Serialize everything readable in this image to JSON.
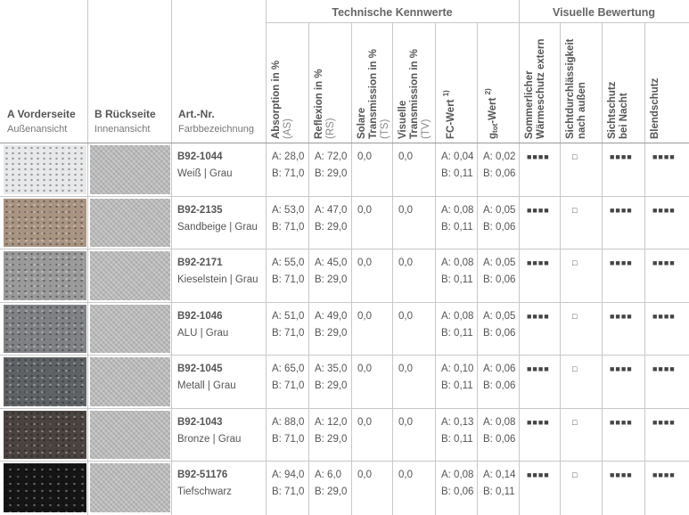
{
  "header": {
    "groups": [
      "Technische Kennwerte",
      "Visuelle Bewertung"
    ],
    "left": [
      {
        "title": "A Vorderseite",
        "subtitle": "Außenansicht"
      },
      {
        "title": "B Rückseite",
        "subtitle": "Innenansicht"
      },
      {
        "title": "Art.-Nr.",
        "subtitle": "Farbbezeichnung"
      }
    ],
    "columns": [
      [
        [
          {
            "text": "Absorption in %"
          }
        ],
        [
          {
            "text": "(AS)",
            "style": "light"
          }
        ]
      ],
      [
        [
          {
            "text": "Reflexion in %"
          }
        ],
        [
          {
            "text": "(RS)",
            "style": "light"
          }
        ]
      ],
      [
        [
          {
            "text": "Solare"
          }
        ],
        [
          {
            "text": "Transmission in %"
          }
        ],
        [
          {
            "text": "(TS)",
            "style": "light"
          }
        ]
      ],
      [
        [
          {
            "text": "Visuelle"
          }
        ],
        [
          {
            "text": "Transmission in %"
          }
        ],
        [
          {
            "text": "(TV)",
            "style": "light"
          }
        ]
      ],
      [
        [
          {
            "text": "FC-Wert "
          },
          {
            "text": "1)",
            "style": "sup"
          }
        ]
      ],
      [
        [
          {
            "text": "g"
          },
          {
            "text": "tot",
            "style": "sub"
          },
          {
            "text": "-Wert "
          },
          {
            "text": "2)",
            "style": "sup"
          }
        ]
      ],
      [
        [
          {
            "text": "Sommerlicher"
          }
        ],
        [
          {
            "text": "Wärmeschutz extern"
          }
        ]
      ],
      [
        [
          {
            "text": "Sichtdurchlässigkeit"
          }
        ],
        [
          {
            "text": "nach außen"
          }
        ]
      ],
      [
        [
          {
            "text": "Sichtschutz"
          }
        ],
        [
          {
            "text": "bei Nacht"
          }
        ]
      ],
      [
        [
          {
            "text": "Blendschutz"
          }
        ]
      ]
    ]
  },
  "rows": [
    {
      "code": "B92-1044",
      "name": "Weiß | Grau",
      "absorption": [
        "A: 28,0",
        "B: 71,0"
      ],
      "reflexion": [
        "A: 72,0",
        "B: 29,0"
      ],
      "solar": "0,0",
      "visual": "0,0",
      "fc": [
        "A: 0,04",
        "B: 0,11"
      ],
      "g": [
        "A: 0,02",
        "B: 0,06"
      ],
      "ratings": [
        "■■■■",
        "□",
        "■■■■",
        "■■■■"
      ]
    },
    {
      "code": "B92-2135",
      "name": "Sandbeige | Grau",
      "absorption": [
        "A: 53,0",
        "B: 71,0"
      ],
      "reflexion": [
        "A: 47,0",
        "B: 29,0"
      ],
      "solar": "0,0",
      "visual": "0,0",
      "fc": [
        "A: 0,08",
        "B: 0,11"
      ],
      "g": [
        "A: 0,05",
        "B: 0,06"
      ],
      "ratings": [
        "■■■■",
        "□",
        "■■■■",
        "■■■■"
      ]
    },
    {
      "code": "B92-2171",
      "name": "Kieselstein | Grau",
      "absorption": [
        "A: 55,0",
        "B: 71,0"
      ],
      "reflexion": [
        "A: 45,0",
        "B: 29,0"
      ],
      "solar": "0,0",
      "visual": "0,0",
      "fc": [
        "A: 0,08",
        "B: 0,11"
      ],
      "g": [
        "A: 0,05",
        "B: 0,06"
      ],
      "ratings": [
        "■■■■",
        "□",
        "■■■■",
        "■■■■"
      ]
    },
    {
      "code": "B92-1046",
      "name": "ALU | Grau",
      "absorption": [
        "A: 51,0",
        "B: 71,0"
      ],
      "reflexion": [
        "A: 49,0",
        "B: 29,0"
      ],
      "solar": "0,0",
      "visual": "0,0",
      "fc": [
        "A: 0,08",
        "B: 0,11"
      ],
      "g": [
        "A: 0,05",
        "B: 0,06"
      ],
      "ratings": [
        "■■■■",
        "□",
        "■■■■",
        "■■■■"
      ]
    },
    {
      "code": "B92-1045",
      "name": "Metall | Grau",
      "absorption": [
        "A: 65,0",
        "B: 71,0"
      ],
      "reflexion": [
        "A: 35,0",
        "B: 29,0"
      ],
      "solar": "0,0",
      "visual": "0,0",
      "fc": [
        "A: 0,10",
        "B: 0,11"
      ],
      "g": [
        "A: 0,06",
        "B: 0,06"
      ],
      "ratings": [
        "■■■■",
        "□",
        "■■■■",
        "■■■■"
      ]
    },
    {
      "code": "B92-1043",
      "name": "Bronze | Grau",
      "absorption": [
        "A: 88,0",
        "B: 71,0"
      ],
      "reflexion": [
        "A: 12,0",
        "B: 29,0"
      ],
      "solar": "0,0",
      "visual": "0,0",
      "fc": [
        "A: 0,13",
        "B: 0,11"
      ],
      "g": [
        "A: 0,08",
        "B: 0,06"
      ],
      "ratings": [
        "■■■■",
        "□",
        "■■■■",
        "■■■■"
      ]
    },
    {
      "code": "B92-51176",
      "name": "Tiefschwarz",
      "absorption": [
        "A: 94,0",
        "B: 71,0"
      ],
      "reflexion": [
        "A: 6,0",
        "B: 29,0"
      ],
      "solar": "0,0",
      "visual": "0,0",
      "fc": [
        "A: 0,08",
        "B: 0,06"
      ],
      "g": [
        "A: 0,14",
        "B: 0,11"
      ],
      "ratings": [
        "■■■■",
        "□",
        "■■■■",
        "■■■■"
      ]
    }
  ]
}
